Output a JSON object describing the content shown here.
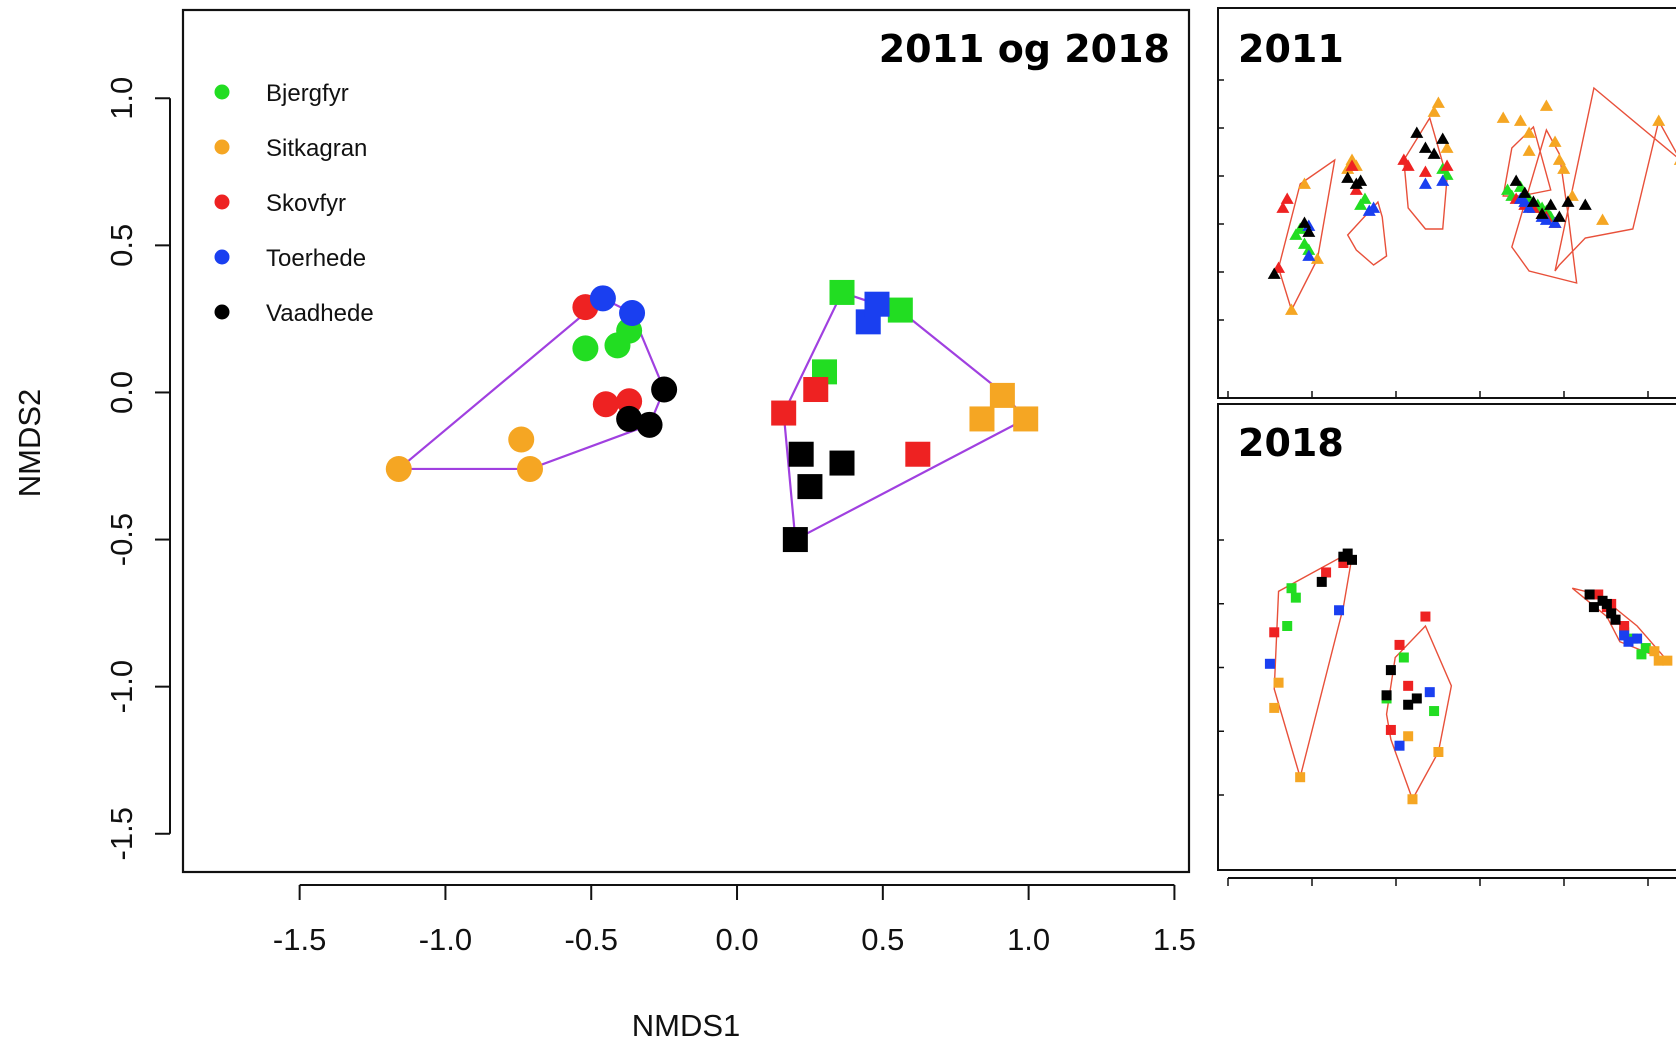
{
  "chart_data": [
    {
      "type": "scatter",
      "title": "2011 og 2018",
      "xlabel": "NMDS1",
      "ylabel": "NMDS2",
      "xlim": [
        -1.9,
        1.55
      ],
      "ylim": [
        -1.63,
        1.3
      ],
      "x_ticks": [
        "-1.5",
        "-1.0",
        "-0.5",
        "0.0",
        "0.5",
        "1.0",
        "1.5"
      ],
      "y_ticks": [
        "-1.5",
        "-1.0",
        "-0.5",
        "0.0",
        "0.5",
        "1.0"
      ],
      "legend_position": "top-left",
      "groups": [
        {
          "marker": "circle",
          "hull": [
            [
              -1.16,
              -0.26
            ],
            [
              -0.46,
              0.32
            ],
            [
              -0.36,
              0.27
            ],
            [
              -0.33,
              0.2
            ],
            [
              -0.25,
              0.01
            ],
            [
              -0.3,
              -0.11
            ],
            [
              -0.71,
              -0.26
            ]
          ]
        },
        {
          "marker": "square",
          "hull": [
            [
              0.36,
              0.34
            ],
            [
              0.57,
              0.27
            ],
            [
              0.91,
              0.0
            ],
            [
              0.99,
              -0.09
            ],
            [
              0.2,
              -0.5
            ],
            [
              0.16,
              -0.07
            ]
          ]
        }
      ],
      "series": [
        {
          "name": "Bjergfyr",
          "color": "#22dd22",
          "points": [
            {
              "x": -0.52,
              "y": 0.15,
              "marker": "circle"
            },
            {
              "x": -0.41,
              "y": 0.16,
              "marker": "circle"
            },
            {
              "x": -0.37,
              "y": 0.21,
              "marker": "circle"
            },
            {
              "x": 0.36,
              "y": 0.34,
              "marker": "square"
            },
            {
              "x": 0.56,
              "y": 0.28,
              "marker": "square"
            },
            {
              "x": 0.3,
              "y": 0.07,
              "marker": "square"
            }
          ]
        },
        {
          "name": "Sitkagran",
          "color": "#f5a623",
          "points": [
            {
              "x": -1.16,
              "y": -0.26,
              "marker": "circle"
            },
            {
              "x": -0.74,
              "y": -0.16,
              "marker": "circle"
            },
            {
              "x": -0.71,
              "y": -0.26,
              "marker": "circle"
            },
            {
              "x": 0.91,
              "y": -0.01,
              "marker": "square"
            },
            {
              "x": 0.84,
              "y": -0.09,
              "marker": "square"
            },
            {
              "x": 0.99,
              "y": -0.09,
              "marker": "square"
            }
          ]
        },
        {
          "name": "Skovfyr",
          "color": "#ee2222",
          "points": [
            {
              "x": -0.52,
              "y": 0.29,
              "marker": "circle"
            },
            {
              "x": -0.45,
              "y": -0.04,
              "marker": "circle"
            },
            {
              "x": -0.37,
              "y": -0.03,
              "marker": "circle"
            },
            {
              "x": 0.16,
              "y": -0.07,
              "marker": "square"
            },
            {
              "x": 0.27,
              "y": 0.01,
              "marker": "square"
            },
            {
              "x": 0.62,
              "y": -0.21,
              "marker": "square"
            }
          ]
        },
        {
          "name": "Toerhede",
          "color": "#1a3ff0",
          "points": [
            {
              "x": -0.46,
              "y": 0.32,
              "marker": "circle"
            },
            {
              "x": -0.36,
              "y": 0.27,
              "marker": "circle"
            },
            {
              "x": 0.45,
              "y": 0.24,
              "marker": "square"
            },
            {
              "x": 0.48,
              "y": 0.3,
              "marker": "square"
            }
          ]
        },
        {
          "name": "Vaadhede",
          "color": "#000000",
          "points": [
            {
              "x": -0.25,
              "y": 0.01,
              "marker": "circle"
            },
            {
              "x": -0.37,
              "y": -0.09,
              "marker": "circle"
            },
            {
              "x": -0.3,
              "y": -0.11,
              "marker": "circle"
            },
            {
              "x": 0.22,
              "y": -0.21,
              "marker": "square"
            },
            {
              "x": 0.36,
              "y": -0.24,
              "marker": "square"
            },
            {
              "x": 0.25,
              "y": -0.32,
              "marker": "square"
            },
            {
              "x": 0.2,
              "y": -0.5,
              "marker": "square"
            }
          ]
        }
      ]
    },
    {
      "type": "scatter",
      "title": "2011",
      "marker": "triangle",
      "xlim": [
        0,
        100
      ],
      "ylim": [
        0,
        100
      ],
      "x_ticks": [
        "",
        "",
        "",
        "",
        "",
        ""
      ],
      "y_ticks": [
        "",
        "",
        "",
        "",
        "",
        "",
        "",
        "",
        ""
      ],
      "hulls": [
        [
          [
            13,
            52
          ],
          [
            21,
            60
          ],
          [
            17,
            27
          ],
          [
            11,
            10
          ],
          [
            8,
            24
          ]
        ],
        [
          [
            24,
            35
          ],
          [
            31,
            46
          ],
          [
            32,
            41
          ],
          [
            33,
            28
          ],
          [
            30,
            25
          ],
          [
            26,
            30
          ]
        ],
        [
          [
            43,
            74
          ],
          [
            47,
            54
          ],
          [
            46,
            37
          ],
          [
            42,
            37
          ],
          [
            38,
            44
          ],
          [
            37,
            60
          ]
        ],
        [
          [
            60,
            48
          ],
          [
            62,
            64
          ],
          [
            67,
            71
          ],
          [
            71,
            50
          ],
          [
            64,
            48
          ]
        ],
        [
          [
            70,
            70
          ],
          [
            73,
            62
          ],
          [
            75,
            42
          ],
          [
            77,
            19
          ],
          [
            66,
            23
          ],
          [
            62,
            31
          ]
        ],
        [
          [
            73,
            25
          ],
          [
            79,
            34
          ],
          [
            90,
            37
          ],
          [
            96,
            73
          ],
          [
            101,
            60
          ],
          [
            81,
            84
          ],
          [
            72,
            23
          ]
        ]
      ],
      "series": [
        {
          "name": "Bjergfyr",
          "color": "#22dd22",
          "points": [
            [
              12,
              35
            ],
            [
              13,
              37
            ],
            [
              14,
              32
            ],
            [
              15,
              30
            ],
            [
              27,
              45
            ],
            [
              28,
              47
            ],
            [
              47,
              55
            ],
            [
              46,
              57
            ],
            [
              61,
              50
            ],
            [
              62,
              48
            ],
            [
              64,
              51
            ],
            [
              66,
              47
            ],
            [
              68,
              45
            ],
            [
              69,
              44
            ],
            [
              70,
              43
            ],
            [
              71,
              41
            ]
          ]
        },
        {
          "name": "Sitkagran",
          "color": "#f5a623",
          "points": [
            [
              14,
              52
            ],
            [
              17,
              27
            ],
            [
              11,
              10
            ],
            [
              24,
              57
            ],
            [
              25,
              60
            ],
            [
              26,
              58
            ],
            [
              45,
              79
            ],
            [
              44,
              76
            ],
            [
              47,
              64
            ],
            [
              60,
              74
            ],
            [
              64,
              73
            ],
            [
              66,
              69
            ],
            [
              66,
              63
            ],
            [
              70,
              78
            ],
            [
              72,
              66
            ],
            [
              73,
              60
            ],
            [
              74,
              57
            ],
            [
              76,
              48
            ],
            [
              83,
              40
            ],
            [
              96,
              73
            ],
            [
              101,
              60
            ]
          ]
        },
        {
          "name": "Skovfyr",
          "color": "#ee2222",
          "points": [
            [
              10,
              47
            ],
            [
              9,
              44
            ],
            [
              8,
              24
            ],
            [
              25,
              58
            ],
            [
              26,
              50
            ],
            [
              37,
              60
            ],
            [
              38,
              58
            ],
            [
              42,
              56
            ],
            [
              47,
              58
            ],
            [
              63,
              47
            ],
            [
              65,
              45
            ],
            [
              67,
              44
            ],
            [
              69,
              42
            ],
            [
              70,
              41
            ],
            [
              72,
              39
            ]
          ]
        },
        {
          "name": "Toerhede",
          "color": "#1a3ff0",
          "points": [
            [
              15,
              38
            ],
            [
              15,
              28
            ],
            [
              29,
              43
            ],
            [
              30,
              44
            ],
            [
              42,
              52
            ],
            [
              46,
              53
            ],
            [
              64,
              47
            ],
            [
              65,
              46
            ],
            [
              66,
              44
            ],
            [
              69,
              41
            ],
            [
              70,
              40
            ],
            [
              72,
              39
            ]
          ]
        },
        {
          "name": "Vaadhede",
          "color": "#000000",
          "points": [
            [
              7,
              22
            ],
            [
              14,
              39
            ],
            [
              15,
              36
            ],
            [
              24,
              54
            ],
            [
              26,
              52
            ],
            [
              27,
              53
            ],
            [
              40,
              69
            ],
            [
              42,
              64
            ],
            [
              44,
              62
            ],
            [
              46,
              67
            ],
            [
              63,
              53
            ],
            [
              65,
              49
            ],
            [
              67,
              46
            ],
            [
              69,
              42
            ],
            [
              71,
              45
            ],
            [
              73,
              41
            ],
            [
              75,
              46
            ],
            [
              79,
              45
            ]
          ]
        }
      ]
    },
    {
      "type": "scatter",
      "title": "2018",
      "marker": "square",
      "xlim": [
        0,
        100
      ],
      "ylim": [
        0,
        100
      ],
      "hulls": [
        [
          [
            24,
            83
          ],
          [
            25,
            82
          ],
          [
            23,
            66
          ],
          [
            13,
            12
          ],
          [
            7,
            40
          ],
          [
            8,
            71
          ]
        ],
        [
          [
            42,
            60
          ],
          [
            48,
            41
          ],
          [
            45,
            20
          ],
          [
            39,
            5
          ],
          [
            34,
            24
          ],
          [
            33,
            32
          ],
          [
            35,
            50
          ]
        ],
        [
          [
            76,
            72
          ],
          [
            84,
            63
          ],
          [
            87,
            55
          ],
          [
            98,
            49
          ],
          [
            91,
            60
          ],
          [
            82,
            70
          ]
        ]
      ],
      "series": [
        {
          "name": "Bjergfyr",
          "color": "#22dd22",
          "points": [
            [
              11,
              72
            ],
            [
              12,
              69
            ],
            [
              10,
              60
            ],
            [
              37,
              50
            ],
            [
              33,
              37
            ],
            [
              44,
              33
            ],
            [
              88,
              58
            ],
            [
              90,
              56
            ],
            [
              92,
              51
            ],
            [
              93,
              53
            ]
          ]
        },
        {
          "name": "Sitkagran",
          "color": "#f5a623",
          "points": [
            [
              8,
              42
            ],
            [
              7,
              34
            ],
            [
              13,
              12
            ],
            [
              39,
              5
            ],
            [
              45,
              20
            ],
            [
              38,
              25
            ],
            [
              96,
              49
            ],
            [
              98,
              49
            ],
            [
              95,
              52
            ]
          ]
        },
        {
          "name": "Skovfyr",
          "color": "#ee2222",
          "points": [
            [
              7,
              58
            ],
            [
              19,
              77
            ],
            [
              23,
              80
            ],
            [
              36,
              54
            ],
            [
              42,
              63
            ],
            [
              38,
              41
            ],
            [
              34,
              27
            ],
            [
              82,
              70
            ],
            [
              85,
              67
            ],
            [
              86,
              62
            ],
            [
              88,
              60
            ],
            [
              84,
              66
            ]
          ]
        },
        {
          "name": "Toerhede",
          "color": "#1a3ff0",
          "points": [
            [
              6,
              48
            ],
            [
              22,
              65
            ],
            [
              43,
              39
            ],
            [
              36,
              22
            ],
            [
              88,
              57
            ],
            [
              89,
              55
            ],
            [
              91,
              56
            ]
          ]
        },
        {
          "name": "Vaadhede",
          "color": "#000000",
          "points": [
            [
              23,
              82
            ],
            [
              25,
              81
            ],
            [
              24,
              83
            ],
            [
              18,
              74
            ],
            [
              34,
              46
            ],
            [
              33,
              38
            ],
            [
              40,
              37
            ],
            [
              38,
              35
            ],
            [
              80,
              70
            ],
            [
              81,
              66
            ],
            [
              83,
              68
            ],
            [
              84,
              67
            ],
            [
              85,
              64
            ],
            [
              86,
              62
            ]
          ]
        }
      ]
    }
  ]
}
